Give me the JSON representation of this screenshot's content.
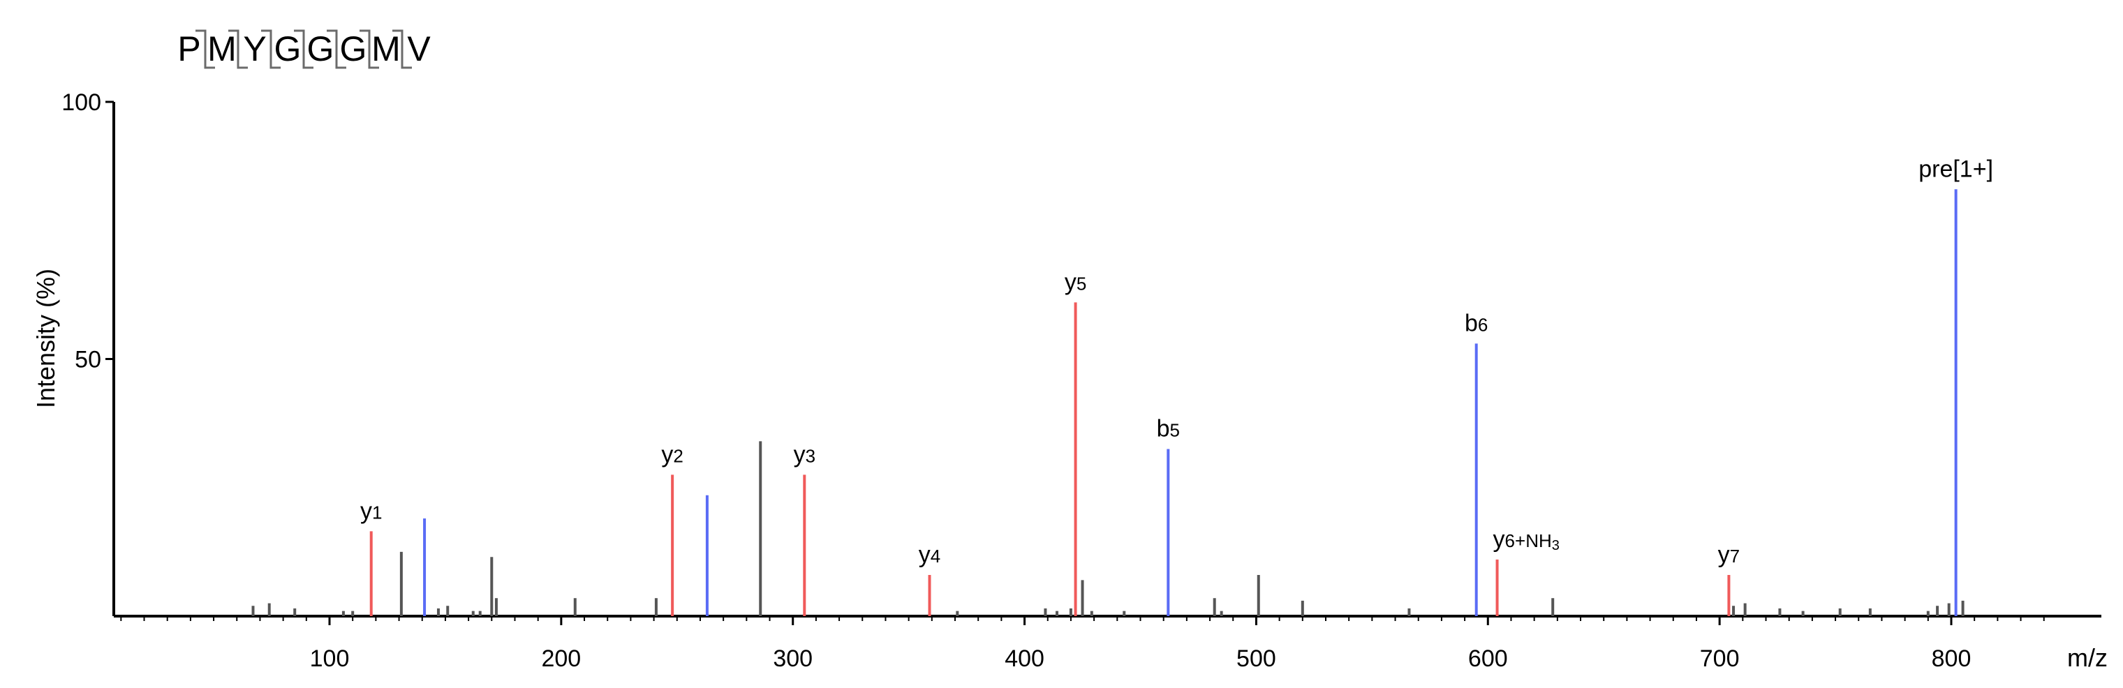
{
  "chart_data": {
    "type": "bar",
    "subtype": "mass-spectrum",
    "peptide": [
      "P",
      "M",
      "Y",
      "G",
      "G",
      "G",
      "M",
      "V"
    ],
    "xlabel": "m/z",
    "ylabel": "Intensity (%)",
    "xlim": [
      0,
      850
    ],
    "ylim": [
      0,
      100
    ],
    "x_ticks": [
      "100",
      "200",
      "300",
      "400",
      "500",
      "600",
      "700",
      "800"
    ],
    "y_ticks": [
      "0",
      "50",
      "100"
    ],
    "colors": {
      "y_ion": "#f05a5a",
      "b_ion": "#5a6cf5",
      "other": "#555555",
      "axis": "#000000"
    },
    "labeled_peaks": [
      {
        "mz": 118,
        "intensity": 16.5,
        "ion": "y",
        "label": "y",
        "sub": "1"
      },
      {
        "mz": 141,
        "intensity": 19,
        "ion": "b",
        "label": "",
        "sub": ""
      },
      {
        "mz": 248,
        "intensity": 27.5,
        "ion": "y",
        "label": "y",
        "sub": "2"
      },
      {
        "mz": 263,
        "intensity": 23.5,
        "ion": "b",
        "label": "",
        "sub": ""
      },
      {
        "mz": 305,
        "intensity": 27.5,
        "ion": "y",
        "label": "y",
        "sub": "3"
      },
      {
        "mz": 359,
        "intensity": 8,
        "ion": "y",
        "label": "y",
        "sub": "4"
      },
      {
        "mz": 422,
        "intensity": 61,
        "ion": "y",
        "label": "y",
        "sub": "5"
      },
      {
        "mz": 462,
        "intensity": 32.5,
        "ion": "b",
        "label": "b",
        "sub": "5"
      },
      {
        "mz": 595,
        "intensity": 53,
        "ion": "b",
        "label": "b",
        "sub": "6"
      },
      {
        "mz": 604,
        "intensity": 11,
        "ion": "y",
        "label": "y",
        "sub": "6",
        "suffix": "+NH",
        "suffix_sub": "3"
      },
      {
        "mz": 704,
        "intensity": 8,
        "ion": "y",
        "label": "y",
        "sub": "7"
      },
      {
        "mz": 802,
        "intensity": 83,
        "ion": "b",
        "label": "pre[1+]",
        "sub": ""
      }
    ],
    "other_peaks": [
      {
        "mz": 67,
        "intensity": 2
      },
      {
        "mz": 74,
        "intensity": 2.5
      },
      {
        "mz": 85,
        "intensity": 1.5
      },
      {
        "mz": 106,
        "intensity": 1
      },
      {
        "mz": 110,
        "intensity": 1
      },
      {
        "mz": 131,
        "intensity": 12.5
      },
      {
        "mz": 147,
        "intensity": 1.5
      },
      {
        "mz": 151,
        "intensity": 2
      },
      {
        "mz": 162,
        "intensity": 1
      },
      {
        "mz": 165,
        "intensity": 1
      },
      {
        "mz": 170,
        "intensity": 11.5
      },
      {
        "mz": 172,
        "intensity": 3.5
      },
      {
        "mz": 206,
        "intensity": 3.5
      },
      {
        "mz": 241,
        "intensity": 3.5
      },
      {
        "mz": 286,
        "intensity": 34
      },
      {
        "mz": 371,
        "intensity": 1
      },
      {
        "mz": 409,
        "intensity": 1.5
      },
      {
        "mz": 414,
        "intensity": 1
      },
      {
        "mz": 420,
        "intensity": 1.5
      },
      {
        "mz": 425,
        "intensity": 7
      },
      {
        "mz": 429,
        "intensity": 1
      },
      {
        "mz": 443,
        "intensity": 1
      },
      {
        "mz": 482,
        "intensity": 3.5
      },
      {
        "mz": 485,
        "intensity": 1
      },
      {
        "mz": 501,
        "intensity": 8
      },
      {
        "mz": 520,
        "intensity": 3
      },
      {
        "mz": 566,
        "intensity": 1.5
      },
      {
        "mz": 628,
        "intensity": 3.5
      },
      {
        "mz": 706,
        "intensity": 2
      },
      {
        "mz": 711,
        "intensity": 2.5
      },
      {
        "mz": 726,
        "intensity": 1.5
      },
      {
        "mz": 736,
        "intensity": 1
      },
      {
        "mz": 752,
        "intensity": 1.5
      },
      {
        "mz": 765,
        "intensity": 1.5
      },
      {
        "mz": 790,
        "intensity": 1
      },
      {
        "mz": 794,
        "intensity": 2
      },
      {
        "mz": 799,
        "intensity": 2.5
      },
      {
        "mz": 805,
        "intensity": 3
      }
    ]
  }
}
